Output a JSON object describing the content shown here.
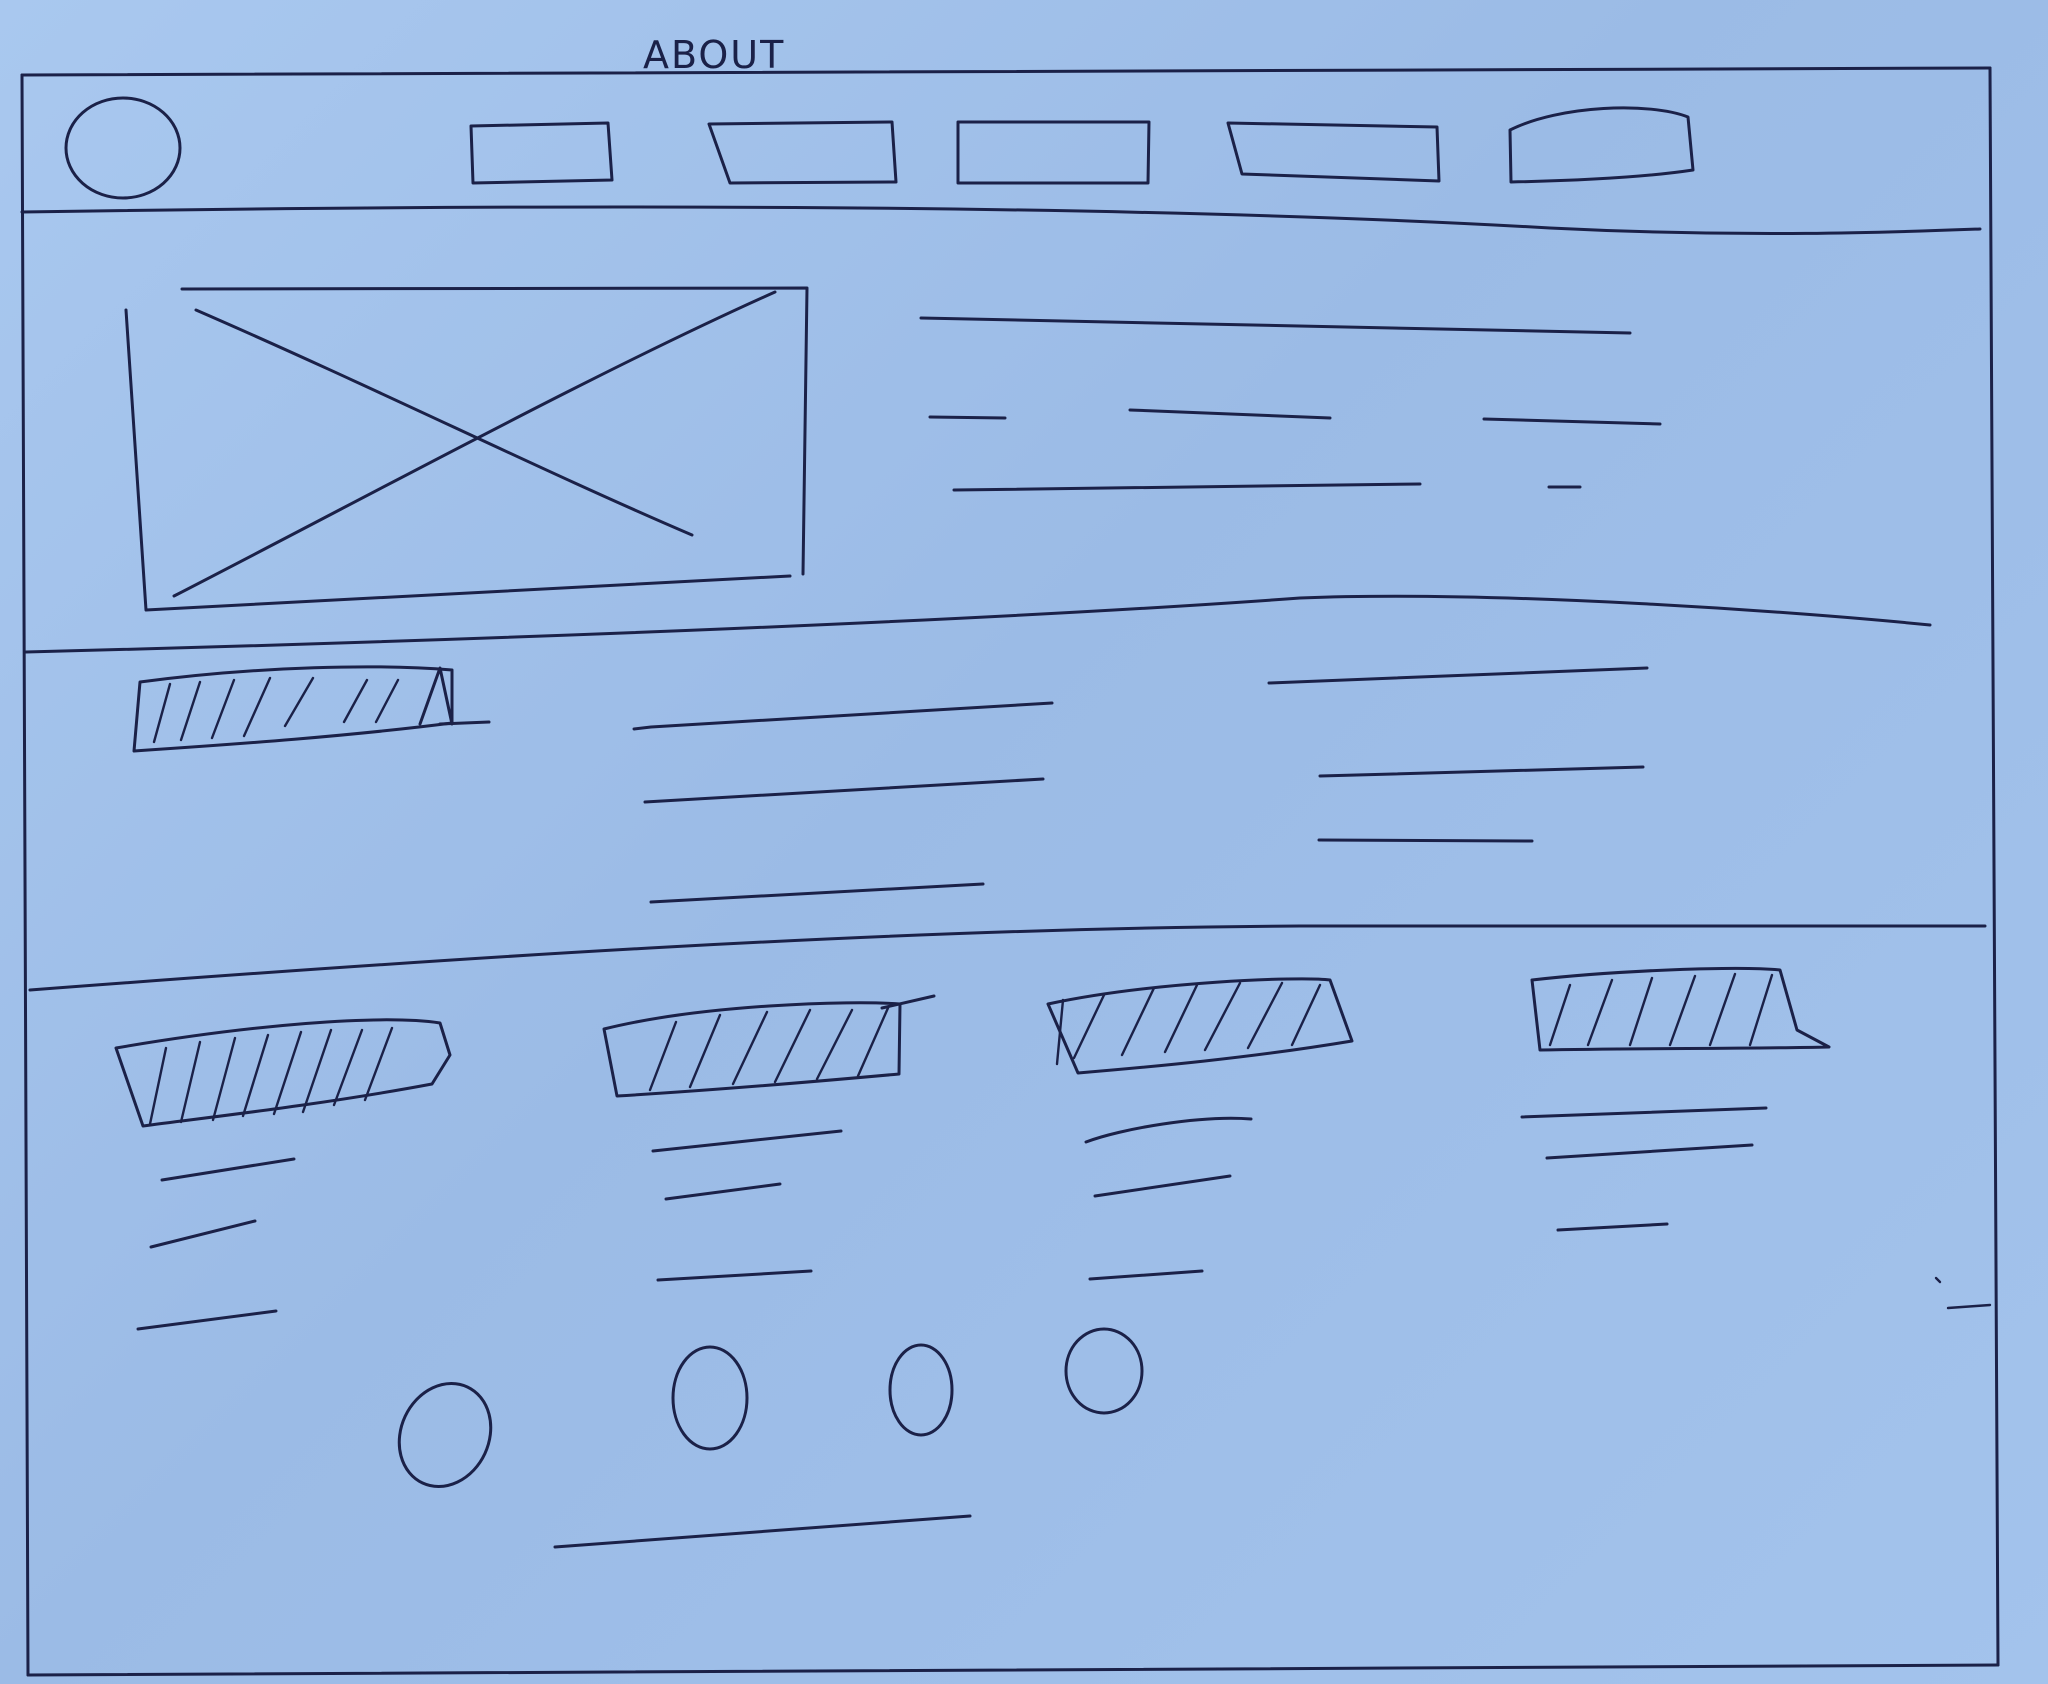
{
  "page": {
    "heading": "ABOUT"
  },
  "header": {
    "logo_icon": "circle-logo-placeholder",
    "nav_items": [
      {
        "label": ""
      },
      {
        "label": ""
      },
      {
        "label": ""
      },
      {
        "label": ""
      },
      {
        "label": ""
      }
    ]
  },
  "hero": {
    "image_icon": "image-placeholder-x",
    "text_line_count": 3
  },
  "intro_section": {
    "title_style": "hatched-block",
    "left_text_line_count": 3,
    "right_text_line_count": 3
  },
  "feature_columns": [
    {
      "title_style": "hatched-block",
      "text_line_count": 3
    },
    {
      "title_style": "hatched-block",
      "text_line_count": 3
    },
    {
      "title_style": "hatched-block",
      "text_line_count": 3
    },
    {
      "title_style": "hatched-block",
      "text_line_count": 3
    }
  ],
  "footer": {
    "social_icons": [
      "circle-icon",
      "circle-icon",
      "circle-icon",
      "circle-icon"
    ],
    "text_line_count": 1
  },
  "colors": {
    "paper": "#a3c3ec",
    "ink": "#1b2148"
  }
}
